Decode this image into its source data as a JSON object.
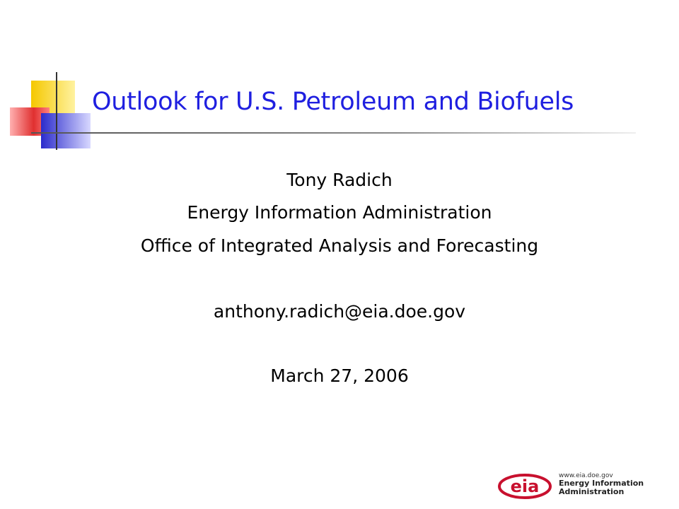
{
  "slide": {
    "title": "Outlook for U.S. Petroleum and Biofuels",
    "author": "Tony Radich",
    "organization": "Energy Information Administration",
    "office": "Office of Integrated Analysis and Forecasting",
    "email": "anthony.radich@eia.doe.gov",
    "date": "March 27, 2006"
  },
  "logo": {
    "mark_text": "eia",
    "url": "www.eia.doe.gov",
    "name_line1": "Energy Information",
    "name_line2": "Administration"
  },
  "colors": {
    "title": "#1f1fe0",
    "deco_yellow": "#f5c800",
    "deco_red": "#e03030",
    "deco_blue": "#2b2bcc",
    "logo_red": "#c8102e"
  }
}
